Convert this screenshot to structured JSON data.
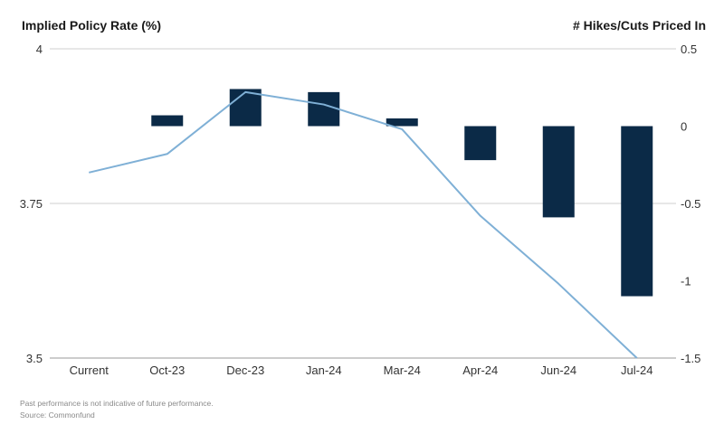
{
  "chart_data": {
    "type": "bar+line",
    "categories": [
      "Current",
      "Oct-23",
      "Dec-23",
      "Jan-24",
      "Mar-24",
      "Apr-24",
      "Jun-24",
      "Jul-24"
    ],
    "left_axis": {
      "title": "Implied Policy Rate (%)",
      "ylim": [
        3.5,
        4.0
      ],
      "ticks": [
        4,
        3.75,
        3.5
      ],
      "tick_labels": [
        "4",
        "3.75",
        "3.5"
      ]
    },
    "right_axis": {
      "title": "# Hikes/Cuts Priced In",
      "ylim": [
        -1.5,
        0.5
      ],
      "ticks": [
        0.5,
        0,
        -0.5,
        -1,
        -1.5
      ],
      "tick_labels": [
        "0.5",
        "0",
        "-0.5",
        "-1",
        "-1.5"
      ]
    },
    "series": [
      {
        "type": "bar",
        "axis": "right",
        "color": "#0b2a47",
        "values": [
          null,
          0.07,
          0.24,
          0.22,
          0.05,
          -0.22,
          -0.59,
          -1.1
        ]
      },
      {
        "type": "line",
        "axis": "left",
        "color": "#7fb0d6",
        "values": [
          3.8,
          3.83,
          3.93,
          3.91,
          3.87,
          3.73,
          3.62,
          3.5
        ]
      }
    ],
    "grid": true
  },
  "footnote": {
    "line1": "Past performance is not indicative of future performance.",
    "line2": "Source: Commonfund"
  }
}
